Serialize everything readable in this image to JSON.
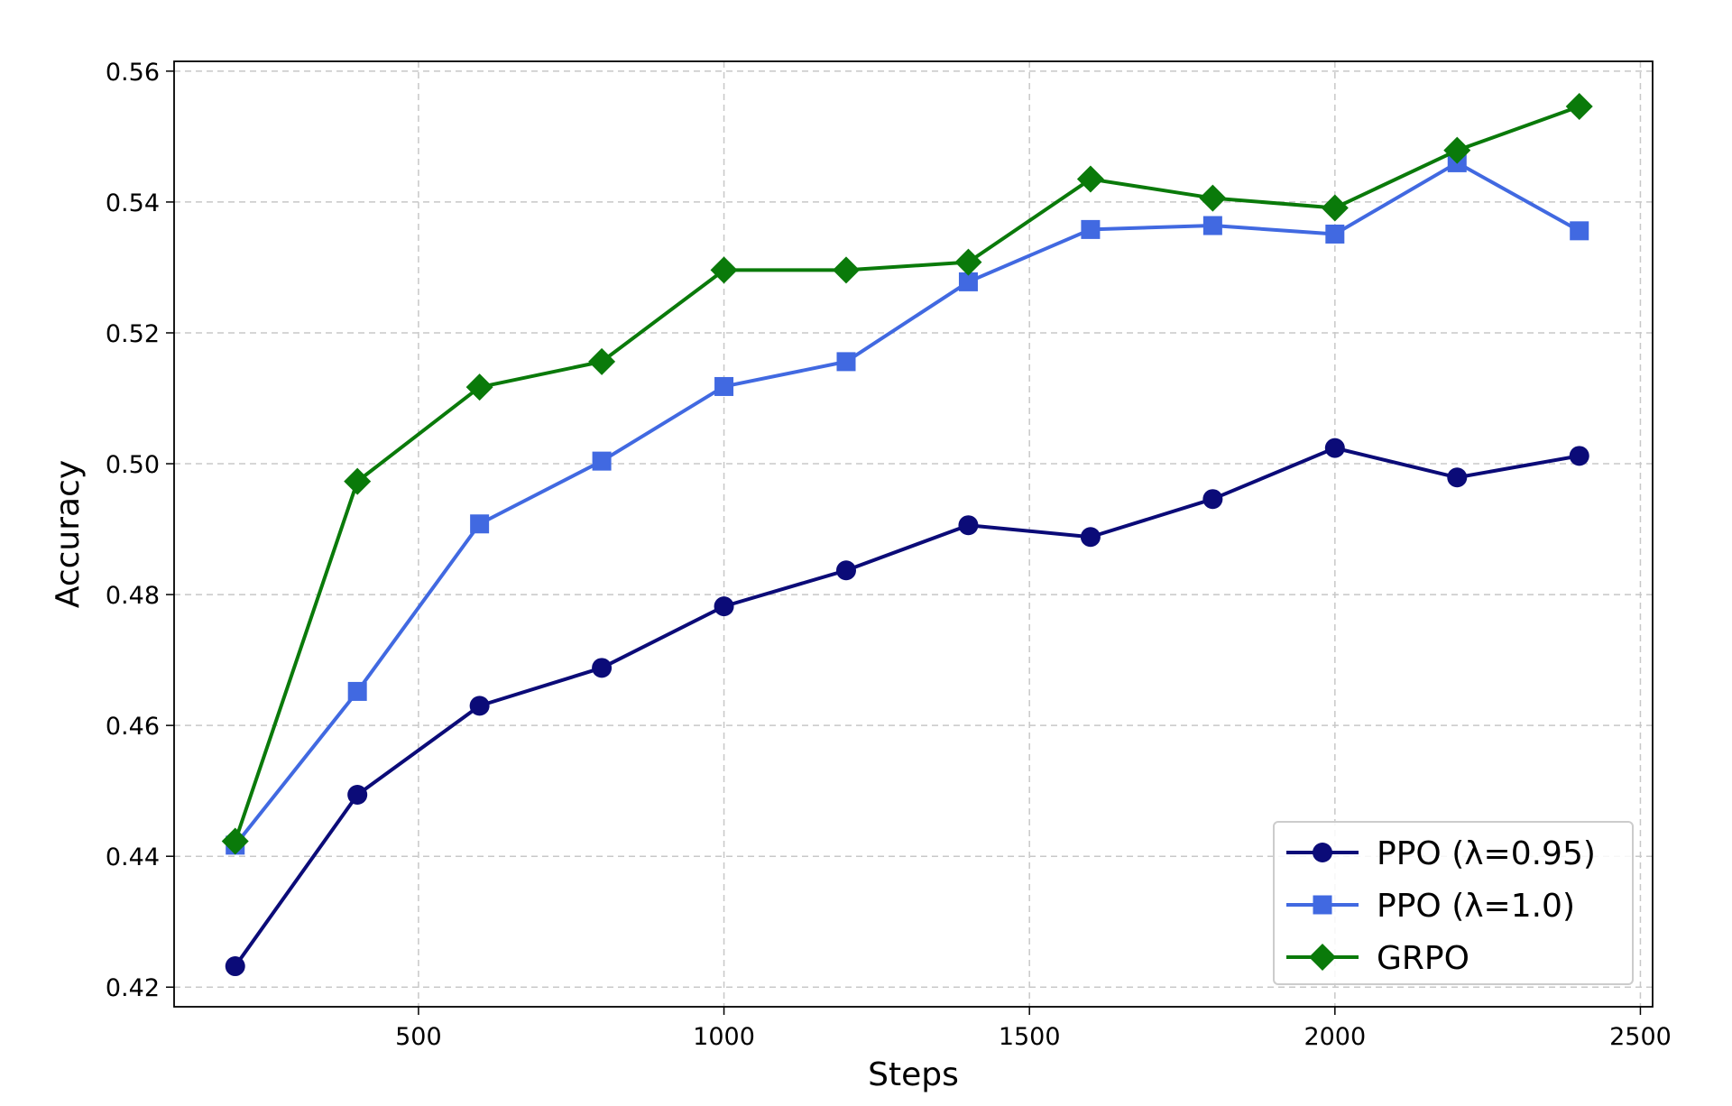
{
  "chart_data": {
    "type": "line",
    "title": "",
    "xlabel": "Steps",
    "ylabel": "Accuracy",
    "xlim": [
      100,
      2520
    ],
    "ylim": [
      0.417,
      0.5615
    ],
    "xticks": [
      500,
      1000,
      1500,
      2000,
      2500
    ],
    "yticks": [
      0.42,
      0.44,
      0.46,
      0.48,
      0.5,
      0.52,
      0.54,
      0.56
    ],
    "xtick_labels": [
      "500",
      "1000",
      "1500",
      "2000",
      "2500"
    ],
    "ytick_labels": [
      "0.42",
      "0.44",
      "0.46",
      "0.48",
      "0.50",
      "0.52",
      "0.54",
      "0.56"
    ],
    "grid": true,
    "legend_position": "bottom-right",
    "x": [
      200,
      400,
      600,
      800,
      1000,
      1200,
      1400,
      1600,
      1800,
      2000,
      2200,
      2400
    ],
    "series": [
      {
        "name": "PPO (λ=0.95)",
        "color": "#0b0b78",
        "marker": "circle",
        "values": [
          0.4232,
          0.4494,
          0.463,
          0.4688,
          0.4782,
          0.4837,
          0.4906,
          0.4888,
          0.4946,
          0.5024,
          0.4979,
          0.5012
        ]
      },
      {
        "name": "PPO (λ=1.0)",
        "color": "#4169e1",
        "marker": "square",
        "values": [
          0.4417,
          0.4652,
          0.4908,
          0.5004,
          0.5118,
          0.5156,
          0.5278,
          0.5358,
          0.5364,
          0.5351,
          0.546,
          0.5356
        ]
      },
      {
        "name": "GRPO",
        "color": "#0a7a0a",
        "marker": "diamond",
        "values": [
          0.4423,
          0.4973,
          0.5117,
          0.5156,
          0.5296,
          0.5296,
          0.5308,
          0.5435,
          0.5406,
          0.5391,
          0.5479,
          0.5546
        ]
      }
    ]
  }
}
